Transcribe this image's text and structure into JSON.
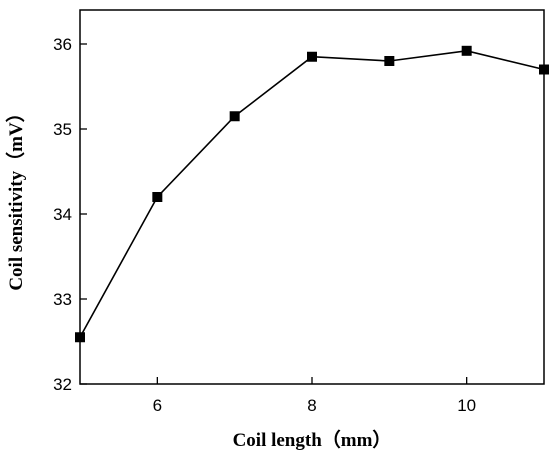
{
  "chart_data": {
    "type": "line",
    "title": "",
    "xlabel": "Coil length（mm）",
    "ylabel": "Coil sensitivity（mV）",
    "xlim": [
      5,
      11
    ],
    "ylim": [
      32,
      36.4
    ],
    "xticks": [
      6,
      8,
      10
    ],
    "yticks": [
      32,
      33,
      34,
      35,
      36
    ],
    "grid": false,
    "legend": "none",
    "series": [
      {
        "x": [
          5,
          6,
          7,
          8,
          9,
          10,
          11
        ],
        "y": [
          32.55,
          34.2,
          35.15,
          35.85,
          35.8,
          35.92,
          35.7
        ],
        "marker": "square",
        "color": "#000000"
      }
    ]
  }
}
